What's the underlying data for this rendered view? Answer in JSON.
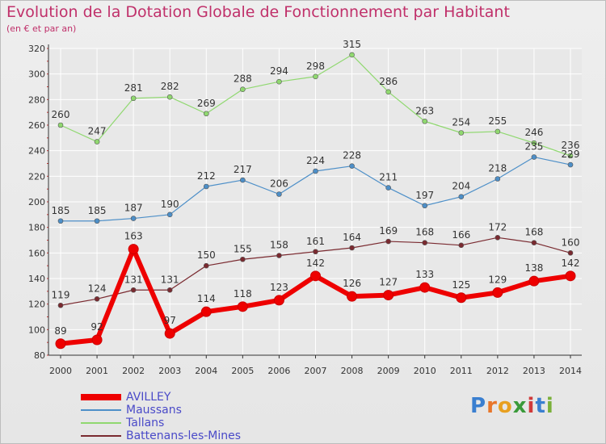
{
  "title": "Evolution de la Dotation Globale de Fonctionnement par Habitant",
  "subtitle": "(en € et par an)",
  "logo_text": "Proxiti",
  "colors": {
    "title": "#c0306a",
    "axis": "#333333",
    "grid": "#ffffff",
    "legend_text": "#4a4ac8"
  },
  "chart_data": {
    "type": "line",
    "title": "Evolution de la Dotation Globale de Fonctionnement par Habitant",
    "subtitle": "(en € et par an)",
    "x": [
      "2000",
      "2001",
      "2002",
      "2003",
      "2004",
      "2005",
      "2006",
      "2007",
      "2008",
      "2009",
      "2010",
      "2011",
      "2012",
      "2013",
      "2014"
    ],
    "ylim": [
      80,
      320
    ],
    "yticks": [
      80,
      100,
      120,
      140,
      160,
      180,
      200,
      220,
      240,
      260,
      280,
      300,
      320
    ],
    "grid": true,
    "legend_position": "bottom-left",
    "series": [
      {
        "name": "AVILLEY",
        "color": "#ee0000",
        "values": [
          89,
          92,
          163,
          97,
          114,
          118,
          123,
          142,
          126,
          127,
          133,
          125,
          129,
          138,
          142
        ],
        "labels": [
          "89",
          "92",
          "163",
          "97",
          "114",
          "118",
          "123",
          "142",
          "126",
          "127",
          "133",
          "125",
          "129",
          "138",
          "142"
        ]
      },
      {
        "name": "Maussans",
        "color": "#4d8fc8",
        "values": [
          185,
          185,
          187,
          190,
          212,
          217,
          206,
          224,
          228,
          211,
          197,
          204,
          218,
          235,
          229
        ],
        "labels": [
          "185",
          "185",
          "187",
          "190",
          "212",
          "217",
          "206",
          "224",
          "228",
          "211",
          "197",
          "204",
          "218",
          "235",
          "229"
        ]
      },
      {
        "name": "Tallans",
        "color": "#90d870",
        "values": [
          260,
          247,
          281,
          282,
          269,
          288,
          294,
          298,
          315,
          286,
          263,
          254,
          255,
          246,
          236
        ],
        "labels": [
          "260",
          "247",
          "281",
          "282",
          "269",
          "288",
          "294",
          "298",
          "315",
          "286",
          "263",
          "254",
          "255",
          "246",
          "236"
        ]
      },
      {
        "name": "Battenans-les-Mines",
        "color": "#7a2a30",
        "values": [
          119,
          124,
          131,
          131,
          150,
          155,
          158,
          161,
          164,
          169,
          168,
          166,
          172,
          168,
          160
        ],
        "labels": [
          "119",
          "124",
          "131",
          "131",
          "150",
          "155",
          "158",
          "161",
          "164",
          "169",
          "168",
          "166",
          "172",
          "168",
          "160"
        ]
      }
    ]
  }
}
